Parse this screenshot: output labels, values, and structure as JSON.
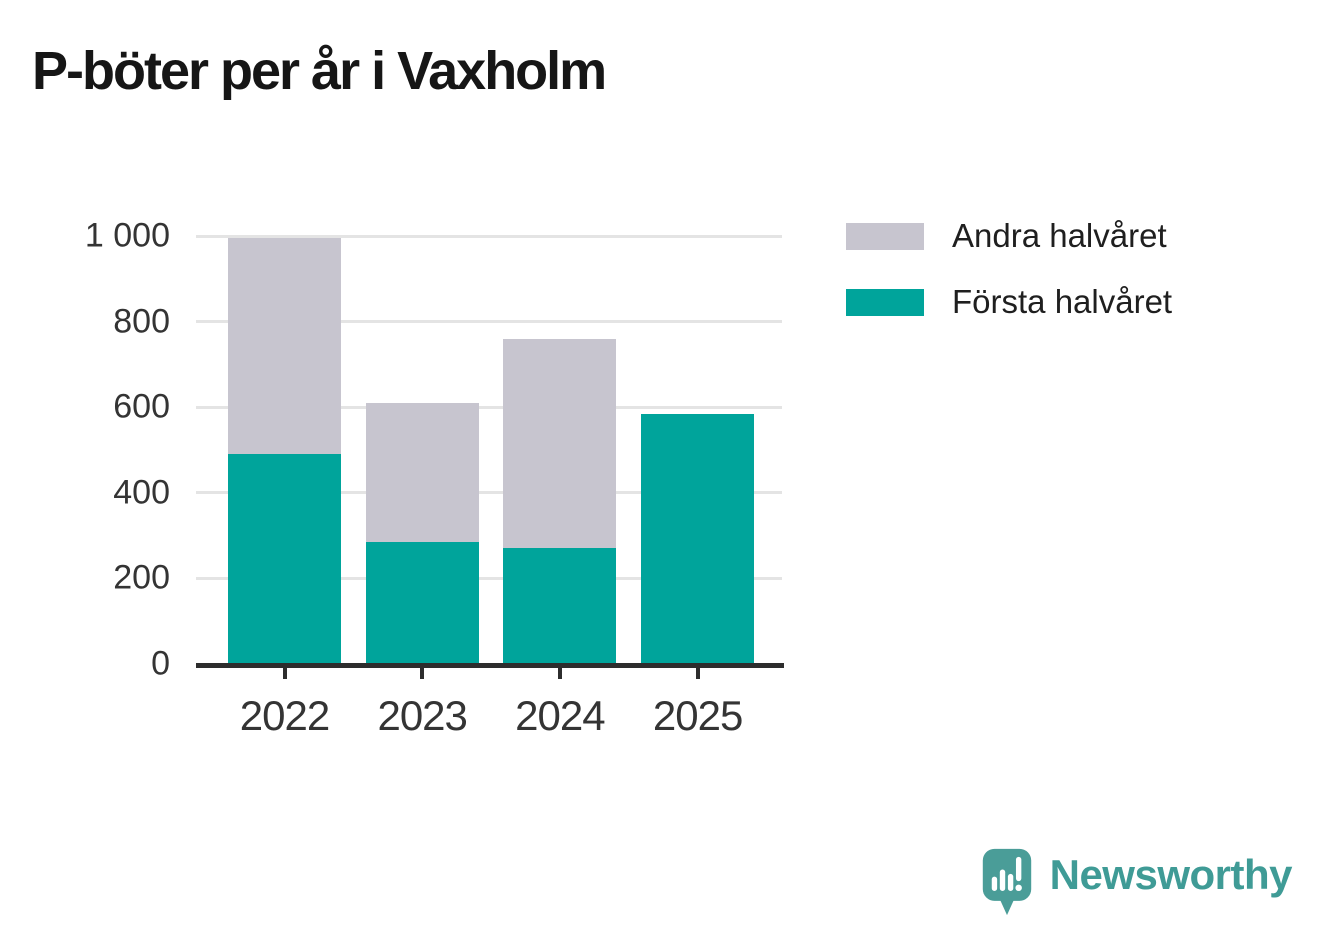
{
  "title": "P-böter per år i Vaxholm",
  "chart_data": {
    "type": "bar",
    "stacked": true,
    "title": "P-böter per år i Vaxholm",
    "categories": [
      "2022",
      "2023",
      "2024",
      "2025"
    ],
    "series": [
      {
        "name": "Första halvåret",
        "color": "#00a49b",
        "values": [
          490,
          285,
          270,
          585
        ]
      },
      {
        "name": "Andra halvåret",
        "color": "#c7c5cf",
        "values": [
          505,
          325,
          490,
          0
        ]
      }
    ],
    "totals": [
      995,
      610,
      760,
      585
    ],
    "xlabel": "",
    "ylabel": "",
    "ylim": [
      0,
      1000
    ],
    "yticks": [
      0,
      200,
      400,
      600,
      800,
      1000
    ],
    "ytick_labels": [
      "0",
      "200",
      "400",
      "600",
      "800",
      "1 000"
    ],
    "grid": "horizontal",
    "legend_position": "right-top",
    "legend_order": [
      "Andra halvåret",
      "Första halvåret"
    ]
  },
  "legend": [
    {
      "label": "Andra halvåret",
      "color": "#c7c5cf"
    },
    {
      "label": "Första halvåret",
      "color": "#00a49b"
    }
  ],
  "colors": {
    "first_half": "#00a49b",
    "second_half": "#c7c5cf",
    "gridline": "#e4e4e4",
    "axis": "#2d2d2d",
    "brand_teal": "#3f9b96",
    "logo_bubble": "#4a9d98"
  },
  "branding": {
    "logo_text": "Newsworthy",
    "logo_icon": "speech-bubble-bar-chart-icon"
  }
}
